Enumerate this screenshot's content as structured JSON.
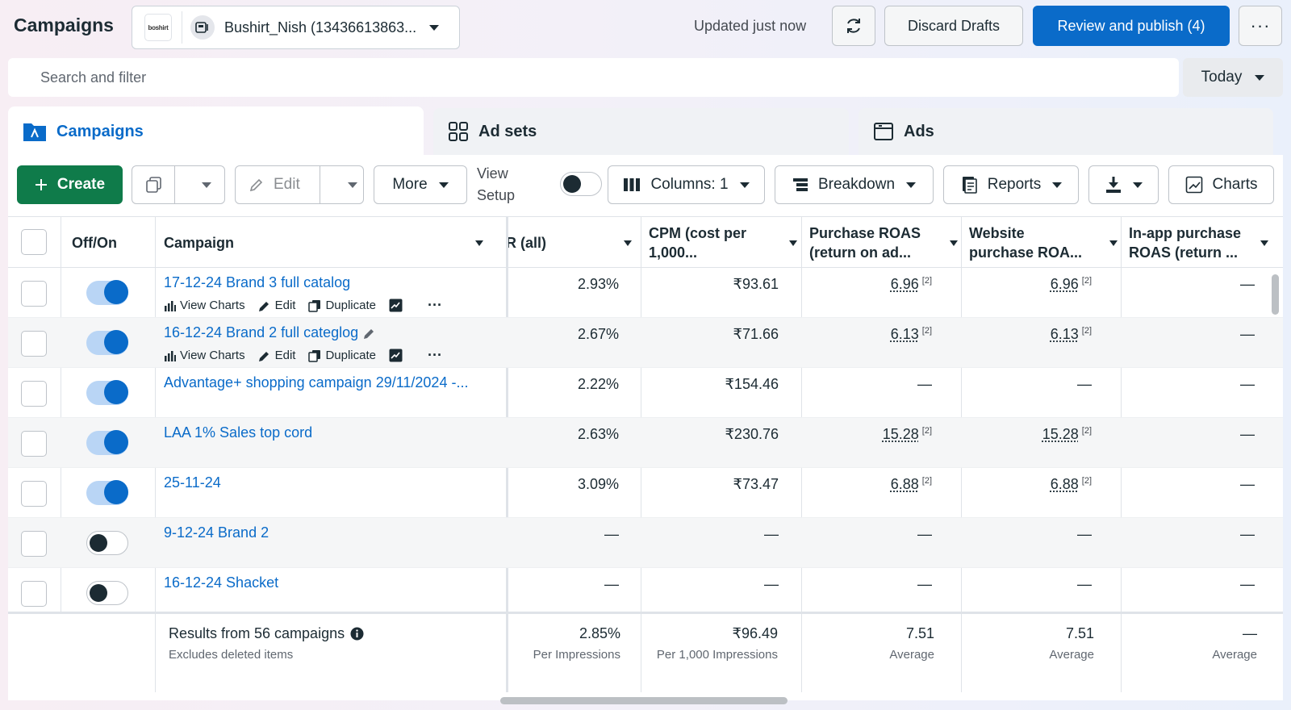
{
  "header": {
    "title": "Campaigns",
    "account_logo": "boshirt",
    "account_name": "Bushirt_Nish (13436613863...",
    "updated": "Updated just now",
    "discard_label": "Discard Drafts",
    "publish_label": "Review and publish (4)",
    "more_label": "···"
  },
  "search": {
    "placeholder": "Search and filter"
  },
  "date_range": {
    "label": "Today"
  },
  "tabs": [
    {
      "label": "Campaigns",
      "icon": "folder-icon",
      "active": true
    },
    {
      "label": "Ad sets",
      "icon": "grid-icon",
      "active": false
    },
    {
      "label": "Ads",
      "icon": "ad-window-icon",
      "active": false
    }
  ],
  "toolbar": {
    "create_label": "Create",
    "edit_label": "Edit",
    "more_label": "More",
    "view_setup_line1": "View",
    "view_setup_line2": "Setup",
    "columns_label": "Columns: 1",
    "breakdown_label": "Breakdown",
    "reports_label": "Reports",
    "charts_label": "Charts"
  },
  "table": {
    "headers": {
      "offon": "Off/On",
      "campaign": "Campaign",
      "ctr": "R (all)",
      "cpm_1": "CPM (cost per",
      "cpm_2": "1,000...",
      "proas_1": "Purchase ROAS",
      "proas_2": "(return on ad...",
      "wroas_1": "Website",
      "wroas_2": "purchase ROA...",
      "iroas_1": "In-app purchase",
      "iroas_2": "ROAS (return ..."
    },
    "action_labels": {
      "view_charts": "View Charts",
      "edit": "Edit",
      "duplicate": "Duplicate"
    },
    "rows": [
      {
        "name": "17-12-24 Brand 3 full catalog",
        "on": true,
        "ctr": "2.93%",
        "cpm": "₹93.61",
        "proas": "6.96",
        "proas_note": "[2]",
        "wroas": "6.96",
        "wroas_note": "[2]",
        "iroas": "—"
      },
      {
        "name": "16-12-24 Brand 2 full categlog",
        "on": true,
        "ctr": "2.67%",
        "cpm": "₹71.66",
        "proas": "6.13",
        "proas_note": "[2]",
        "wroas": "6.13",
        "wroas_note": "[2]",
        "iroas": "—"
      },
      {
        "name": "Advantage+ shopping campaign 29/11/2024 -...",
        "on": true,
        "ctr": "2.22%",
        "cpm": "₹154.46",
        "proas": "—",
        "proas_note": "",
        "wroas": "—",
        "wroas_note": "",
        "iroas": "—"
      },
      {
        "name": "LAA 1% Sales top cord",
        "on": true,
        "ctr": "2.63%",
        "cpm": "₹230.76",
        "proas": "15.28",
        "proas_note": "[2]",
        "wroas": "15.28",
        "wroas_note": "[2]",
        "iroas": "—"
      },
      {
        "name": "25-11-24",
        "on": true,
        "ctr": "3.09%",
        "cpm": "₹73.47",
        "proas": "6.88",
        "proas_note": "[2]",
        "wroas": "6.88",
        "wroas_note": "[2]",
        "iroas": "—"
      },
      {
        "name": "9-12-24 Brand 2",
        "on": false,
        "ctr": "—",
        "cpm": "—",
        "proas": "—",
        "proas_note": "",
        "wroas": "—",
        "wroas_note": "",
        "iroas": "—"
      },
      {
        "name": "16-12-24 Shacket",
        "on": false,
        "ctr": "—",
        "cpm": "—",
        "proas": "—",
        "proas_note": "",
        "wroas": "—",
        "wroas_note": "",
        "iroas": "—"
      }
    ],
    "footer": {
      "results": "Results from 56 campaigns",
      "excludes": "Excludes deleted items",
      "ctr": "2.85%",
      "ctr_label": "Per Impressions",
      "cpm": "₹96.49",
      "cpm_label": "Per 1,000 Impressions",
      "proas": "7.51",
      "proas_label": "Average",
      "wroas": "7.51",
      "wroas_label": "Average",
      "iroas": "—",
      "iroas_label": "Average"
    }
  }
}
